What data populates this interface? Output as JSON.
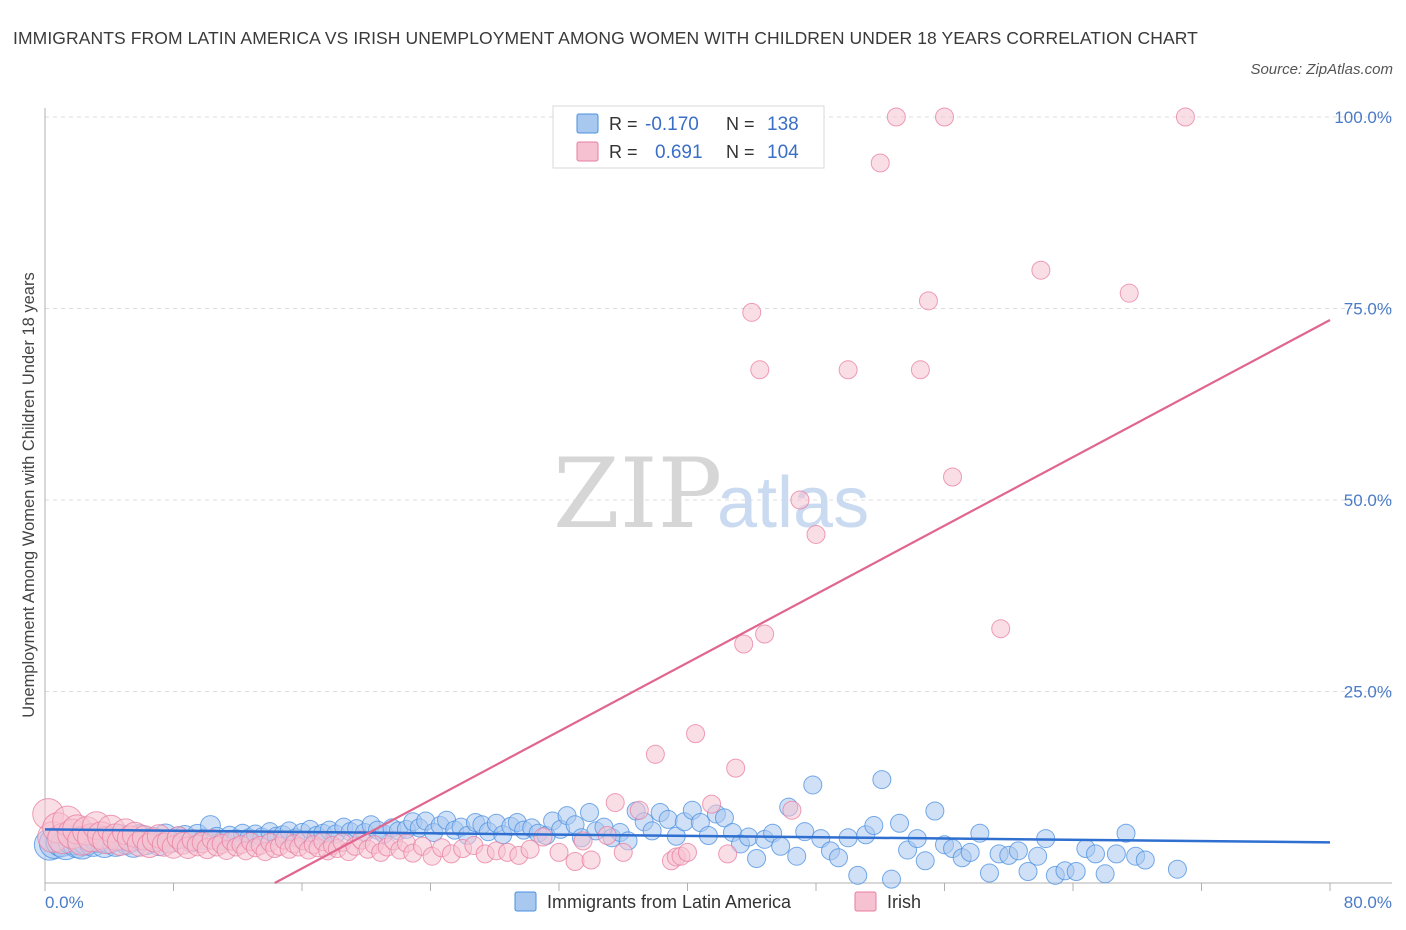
{
  "title": "IMMIGRANTS FROM LATIN AMERICA VS IRISH UNEMPLOYMENT AMONG WOMEN WITH CHILDREN UNDER 18 YEARS CORRELATION CHART",
  "source": "Source: ZipAtlas.com",
  "watermark": {
    "zip": "ZIP",
    "atlas": "atlas"
  },
  "colors": {
    "blue": "#4a8fe0",
    "blue_fill": "#a9c8f0",
    "pink": "#e87ea0",
    "pink_fill": "#f6c2d2",
    "blue_line": "#2f6fd0",
    "pink_line": "#e0658f",
    "tick_text": "#4a7bc8"
  },
  "legend": {
    "rows": [
      {
        "r_label": "R =",
        "r_value": "-0.170",
        "n_label": "N =",
        "n_value": "138"
      },
      {
        "r_label": "R =",
        "r_value": "0.691",
        "n_label": "N =",
        "n_value": "104"
      }
    ]
  },
  "bottom_legend": [
    "Immigrants from Latin America",
    "Irish"
  ],
  "chart_data": {
    "type": "scatter",
    "title": "IMMIGRANTS FROM LATIN AMERICA VS IRISH UNEMPLOYMENT AMONG WOMEN WITH CHILDREN UNDER 18 YEARS CORRELATION CHART",
    "xlabel": "",
    "ylabel": "Unemployment Among Women with Children Under 18 years",
    "xlim": [
      0,
      80
    ],
    "ylim": [
      0,
      100
    ],
    "x_tick_labels": [
      "0.0%",
      "80.0%"
    ],
    "y_tick_labels": [
      "25.0%",
      "50.0%",
      "75.0%",
      "100.0%"
    ],
    "y_ticks": [
      25,
      50,
      75,
      100
    ],
    "series": [
      {
        "name": "Immigrants from Latin America",
        "R": -0.17,
        "N": 138,
        "trend": {
          "x": [
            0,
            80
          ],
          "y": [
            7.0,
            5.3
          ]
        },
        "points": [
          [
            0.3,
            5.0
          ],
          [
            0.6,
            5.2
          ],
          [
            1.0,
            5.4
          ],
          [
            1.3,
            5.0
          ],
          [
            1.7,
            5.6
          ],
          [
            2.0,
            5.2
          ],
          [
            2.3,
            5.0
          ],
          [
            2.6,
            5.5
          ],
          [
            3.0,
            5.3
          ],
          [
            3.3,
            5.8
          ],
          [
            3.7,
            5.1
          ],
          [
            4.0,
            5.6
          ],
          [
            4.4,
            5.2
          ],
          [
            4.7,
            5.9
          ],
          [
            5.1,
            5.4
          ],
          [
            5.5,
            5.0
          ],
          [
            5.9,
            6.0
          ],
          [
            6.3,
            5.3
          ],
          [
            6.7,
            5.7
          ],
          [
            7.1,
            5.1
          ],
          [
            7.5,
            6.2
          ],
          [
            7.9,
            5.5
          ],
          [
            8.3,
            5.9
          ],
          [
            8.7,
            6.1
          ],
          [
            9.1,
            5.4
          ],
          [
            9.5,
            6.3
          ],
          [
            9.9,
            5.7
          ],
          [
            10.3,
            7.5
          ],
          [
            10.7,
            6.0
          ],
          [
            11.1,
            5.5
          ],
          [
            11.5,
            6.2
          ],
          [
            11.9,
            5.8
          ],
          [
            12.3,
            6.5
          ],
          [
            12.7,
            5.9
          ],
          [
            13.1,
            6.4
          ],
          [
            13.5,
            6.0
          ],
          [
            14.0,
            6.7
          ],
          [
            14.4,
            6.1
          ],
          [
            14.8,
            6.3
          ],
          [
            15.2,
            6.8
          ],
          [
            15.6,
            5.9
          ],
          [
            16.0,
            6.6
          ],
          [
            16.5,
            7.0
          ],
          [
            16.9,
            6.2
          ],
          [
            17.3,
            6.5
          ],
          [
            17.7,
            6.9
          ],
          [
            18.1,
            6.4
          ],
          [
            18.6,
            7.3
          ],
          [
            19.0,
            6.7
          ],
          [
            19.4,
            7.1
          ],
          [
            19.9,
            6.6
          ],
          [
            20.3,
            7.6
          ],
          [
            20.7,
            6.9
          ],
          [
            21.1,
            6.4
          ],
          [
            21.6,
            7.2
          ],
          [
            22.0,
            6.8
          ],
          [
            22.5,
            7.0
          ],
          [
            22.9,
            8.0
          ],
          [
            23.3,
            7.2
          ],
          [
            23.7,
            8.1
          ],
          [
            24.2,
            6.6
          ],
          [
            24.6,
            7.5
          ],
          [
            25.0,
            8.2
          ],
          [
            25.5,
            6.9
          ],
          [
            25.9,
            7.3
          ],
          [
            26.3,
            6.2
          ],
          [
            26.8,
            7.9
          ],
          [
            27.2,
            7.6
          ],
          [
            27.6,
            6.7
          ],
          [
            28.1,
            7.8
          ],
          [
            28.5,
            6.3
          ],
          [
            29.0,
            7.4
          ],
          [
            29.4,
            7.9
          ],
          [
            29.8,
            6.9
          ],
          [
            30.3,
            7.2
          ],
          [
            30.7,
            6.5
          ],
          [
            31.2,
            6.2
          ],
          [
            31.6,
            8.1
          ],
          [
            32.1,
            7.0
          ],
          [
            32.5,
            8.8
          ],
          [
            33.0,
            7.6
          ],
          [
            33.4,
            5.9
          ],
          [
            33.9,
            9.2
          ],
          [
            34.3,
            6.8
          ],
          [
            34.8,
            7.3
          ],
          [
            35.3,
            5.9
          ],
          [
            35.8,
            6.6
          ],
          [
            36.3,
            5.5
          ],
          [
            36.8,
            9.4
          ],
          [
            37.3,
            8.0
          ],
          [
            37.8,
            6.8
          ],
          [
            38.3,
            9.2
          ],
          [
            38.8,
            8.3
          ],
          [
            39.3,
            6.1
          ],
          [
            39.8,
            8.0
          ],
          [
            40.3,
            9.5
          ],
          [
            40.8,
            7.9
          ],
          [
            41.3,
            6.2
          ],
          [
            41.8,
            9.0
          ],
          [
            42.3,
            8.5
          ],
          [
            42.8,
            6.6
          ],
          [
            43.3,
            5.1
          ],
          [
            43.8,
            6.0
          ],
          [
            44.3,
            3.2
          ],
          [
            44.8,
            5.7
          ],
          [
            45.3,
            6.5
          ],
          [
            45.8,
            4.8
          ],
          [
            46.3,
            9.9
          ],
          [
            46.8,
            3.5
          ],
          [
            47.3,
            6.7
          ],
          [
            47.8,
            12.8
          ],
          [
            48.3,
            5.8
          ],
          [
            48.9,
            4.2
          ],
          [
            49.4,
            3.3
          ],
          [
            50.0,
            5.9
          ],
          [
            50.6,
            1.0
          ],
          [
            51.1,
            6.3
          ],
          [
            51.6,
            7.5
          ],
          [
            52.1,
            13.5
          ],
          [
            52.7,
            0.5
          ],
          [
            53.2,
            7.8
          ],
          [
            53.7,
            4.3
          ],
          [
            54.3,
            5.8
          ],
          [
            54.8,
            2.9
          ],
          [
            55.4,
            9.4
          ],
          [
            56.0,
            5.0
          ],
          [
            56.5,
            4.5
          ],
          [
            57.1,
            3.3
          ],
          [
            57.6,
            4.0
          ],
          [
            58.2,
            6.5
          ],
          [
            58.8,
            1.3
          ],
          [
            59.4,
            3.8
          ],
          [
            60.0,
            3.6
          ],
          [
            60.6,
            4.2
          ],
          [
            61.2,
            1.5
          ],
          [
            61.8,
            3.5
          ],
          [
            62.3,
            5.8
          ],
          [
            62.9,
            1.0
          ],
          [
            63.5,
            1.6
          ],
          [
            64.2,
            1.5
          ],
          [
            64.8,
            4.5
          ],
          [
            65.4,
            3.8
          ],
          [
            66.0,
            1.2
          ],
          [
            66.7,
            3.8
          ],
          [
            67.3,
            6.5
          ],
          [
            67.9,
            3.5
          ],
          [
            68.5,
            3.0
          ],
          [
            70.5,
            1.8
          ]
        ]
      },
      {
        "name": "Irish",
        "R": 0.691,
        "N": 104,
        "trend": {
          "x": [
            0,
            80
          ],
          "y": [
            -16.0,
            73.5
          ]
        },
        "points": [
          [
            0.2,
            9.0
          ],
          [
            0.5,
            6.0
          ],
          [
            0.8,
            7.2
          ],
          [
            1.1,
            5.8
          ],
          [
            1.4,
            8.1
          ],
          [
            1.7,
            6.4
          ],
          [
            2.0,
            7.0
          ],
          [
            2.3,
            5.5
          ],
          [
            2.6,
            6.8
          ],
          [
            2.9,
            5.9
          ],
          [
            3.2,
            7.5
          ],
          [
            3.5,
            6.2
          ],
          [
            3.8,
            5.6
          ],
          [
            4.1,
            7.1
          ],
          [
            4.4,
            6.0
          ],
          [
            4.7,
            5.3
          ],
          [
            5.0,
            6.7
          ],
          [
            5.3,
            5.8
          ],
          [
            5.6,
            6.3
          ],
          [
            5.9,
            5.1
          ],
          [
            6.2,
            5.9
          ],
          [
            6.5,
            4.9
          ],
          [
            6.8,
            5.6
          ],
          [
            7.1,
            6.1
          ],
          [
            7.4,
            5.0
          ],
          [
            7.7,
            5.4
          ],
          [
            8.0,
            4.7
          ],
          [
            8.3,
            5.9
          ],
          [
            8.6,
            5.2
          ],
          [
            8.9,
            4.6
          ],
          [
            9.2,
            5.6
          ],
          [
            9.5,
            4.9
          ],
          [
            9.8,
            5.3
          ],
          [
            10.1,
            4.5
          ],
          [
            10.4,
            5.7
          ],
          [
            10.7,
            4.8
          ],
          [
            11.0,
            5.1
          ],
          [
            11.3,
            4.3
          ],
          [
            11.6,
            5.5
          ],
          [
            11.9,
            4.7
          ],
          [
            12.2,
            5.0
          ],
          [
            12.5,
            4.2
          ],
          [
            12.8,
            5.4
          ],
          [
            13.1,
            4.6
          ],
          [
            13.4,
            4.9
          ],
          [
            13.7,
            4.1
          ],
          [
            14.0,
            5.3
          ],
          [
            14.3,
            4.5
          ],
          [
            14.6,
            4.8
          ],
          [
            14.9,
            5.6
          ],
          [
            15.2,
            4.4
          ],
          [
            15.5,
            5.1
          ],
          [
            15.8,
            4.7
          ],
          [
            16.1,
            5.5
          ],
          [
            16.4,
            4.3
          ],
          [
            16.7,
            5.0
          ],
          [
            17.0,
            4.6
          ],
          [
            17.3,
            5.4
          ],
          [
            17.6,
            4.2
          ],
          [
            17.9,
            4.9
          ],
          [
            18.2,
            4.5
          ],
          [
            18.5,
            5.3
          ],
          [
            18.9,
            4.1
          ],
          [
            19.3,
            4.8
          ],
          [
            19.7,
            5.6
          ],
          [
            20.1,
            4.4
          ],
          [
            20.5,
            5.0
          ],
          [
            20.9,
            4.0
          ],
          [
            21.3,
            4.7
          ],
          [
            21.7,
            5.5
          ],
          [
            22.1,
            4.3
          ],
          [
            22.5,
            5.2
          ],
          [
            22.9,
            3.9
          ],
          [
            23.5,
            4.8
          ],
          [
            24.1,
            3.5
          ],
          [
            24.7,
            4.6
          ],
          [
            25.3,
            3.8
          ],
          [
            26.0,
            4.5
          ],
          [
            26.7,
            4.9
          ],
          [
            27.4,
            3.8
          ],
          [
            28.1,
            4.2
          ],
          [
            28.8,
            4.0
          ],
          [
            29.5,
            3.6
          ],
          [
            30.2,
            4.4
          ],
          [
            31.0,
            6.0
          ],
          [
            32.0,
            4.0
          ],
          [
            33.0,
            2.8
          ],
          [
            33.5,
            5.5
          ],
          [
            34.0,
            3.0
          ],
          [
            35.0,
            6.2
          ],
          [
            35.5,
            10.5
          ],
          [
            36.0,
            4.0
          ],
          [
            37.0,
            9.5
          ],
          [
            38.0,
            16.8
          ],
          [
            39.0,
            2.9
          ],
          [
            39.3,
            3.4
          ],
          [
            39.6,
            3.5
          ],
          [
            40.0,
            4.0
          ],
          [
            40.5,
            19.5
          ],
          [
            41.5,
            10.3
          ],
          [
            42.5,
            3.8
          ],
          [
            43.0,
            15.0
          ],
          [
            43.5,
            31.2
          ],
          [
            44.0,
            74.5
          ],
          [
            44.5,
            67.0
          ],
          [
            44.8,
            32.5
          ],
          [
            45.5,
            99.8
          ],
          [
            46.5,
            9.5
          ],
          [
            47.0,
            50.0
          ],
          [
            48.0,
            45.5
          ],
          [
            50.0,
            67.0
          ],
          [
            52.0,
            94.0
          ],
          [
            53.0,
            100.0
          ],
          [
            54.5,
            67.0
          ],
          [
            55.0,
            76.0
          ],
          [
            56.0,
            100.0
          ],
          [
            56.5,
            53.0
          ],
          [
            59.5,
            33.2
          ],
          [
            62.0,
            80.0
          ],
          [
            67.5,
            77.0
          ],
          [
            71.0,
            100.0
          ]
        ]
      }
    ]
  }
}
